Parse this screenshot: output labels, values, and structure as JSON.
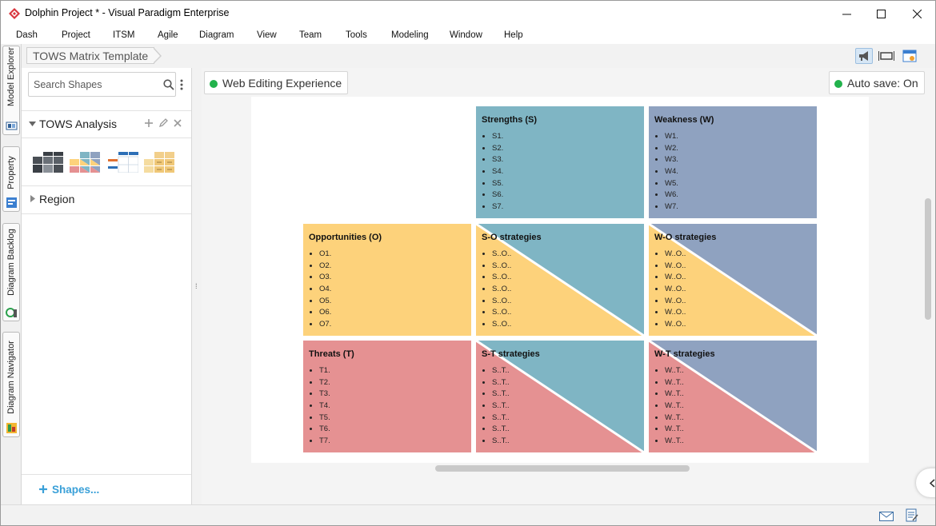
{
  "window": {
    "title": "Dolphin Project * - Visual Paradigm Enterprise",
    "buttons": [
      "minimize",
      "maximize",
      "close"
    ]
  },
  "menu": [
    "Dash",
    "Project",
    "ITSM",
    "Agile",
    "Diagram",
    "View",
    "Team",
    "Tools",
    "Modeling",
    "Window",
    "Help"
  ],
  "side_tabs": [
    "Model Explorer",
    "Property",
    "Diagram Backlog",
    "Diagram Navigator"
  ],
  "breadcrumb": "TOWS Matrix Template",
  "shapes_panel": {
    "search_placeholder": "Search Shapes",
    "group": "TOWS Analysis",
    "thumbnails": [
      "tows-template-dark",
      "tows-template-color",
      "tows-template-blue",
      "tows-template-yellow"
    ],
    "region": "Region",
    "shapes_link": "Shapes..."
  },
  "diagram": {
    "name": "Web Editing Experience",
    "autosave": "Auto save: On",
    "cells": {
      "strengths": {
        "title": "Strengths (S)",
        "items": [
          "S1.",
          "S2.",
          "S3.",
          "S4.",
          "S5.",
          "S6.",
          "S7."
        ]
      },
      "weakness": {
        "title": "Weakness (W)",
        "items": [
          "W1.",
          "W2.",
          "W3.",
          "W4.",
          "W5.",
          "W6.",
          "W7."
        ]
      },
      "opportunities": {
        "title": "Opportunities (O)",
        "items": [
          "O1.",
          "O2.",
          "O3.",
          "O4.",
          "O5.",
          "O6.",
          "O7."
        ]
      },
      "threats": {
        "title": "Threats (T)",
        "items": [
          "T1.",
          "T2.",
          "T3.",
          "T4.",
          "T5.",
          "T6.",
          "T7."
        ]
      },
      "so": {
        "title": "S-O strategies",
        "items": [
          "S..O..",
          "S..O..",
          "S..O..",
          "S..O..",
          "S..O..",
          "S..O..",
          "S..O.."
        ]
      },
      "wo": {
        "title": "W-O strategies",
        "items": [
          "W..O..",
          "W..O..",
          "W..O..",
          "W..O..",
          "W..O..",
          "W..O..",
          "W..O.."
        ]
      },
      "st": {
        "title": "S-T strategies",
        "items": [
          "S..T..",
          "S..T..",
          "S..T..",
          "S..T..",
          "S..T..",
          "S..T..",
          "S..T.."
        ]
      },
      "wt": {
        "title": "W-T strategies",
        "items": [
          "W..T..",
          "W..T..",
          "W..T..",
          "W..T..",
          "W..T..",
          "W..T..",
          "W..T.."
        ]
      }
    }
  },
  "colors": {
    "strengths": "#7fb5c4",
    "weakness": "#8fa2c0",
    "opportunities": "#fdd27b",
    "threats": "#e59192",
    "autosave_dot": "#22b24c",
    "shapes_link": "#3aa0d8"
  }
}
